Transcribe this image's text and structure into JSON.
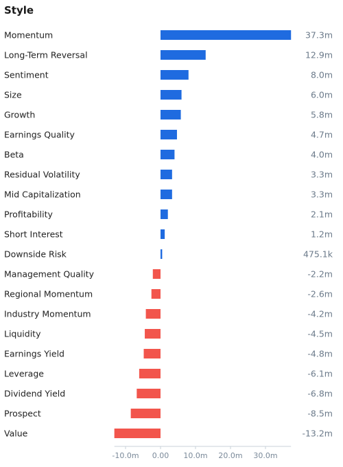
{
  "header": {
    "title": "Style"
  },
  "colors": {
    "positive": "#1f6be0",
    "negative": "#f2554c",
    "axis": "#c8d0d8"
  },
  "chart_data": {
    "type": "bar",
    "orientation": "horizontal",
    "title": "Style",
    "xlim": [
      -13.2,
      37.3
    ],
    "xticks": [
      -10,
      0,
      10,
      20,
      30
    ],
    "xtick_labels": [
      "-10.0m",
      "0.00",
      "10.0m",
      "20.0m",
      "30.0m"
    ],
    "grid": false,
    "categories": [
      "Momentum",
      "Long-Term Reversal",
      "Sentiment",
      "Size",
      "Growth",
      "Earnings Quality",
      "Beta",
      "Residual Volatility",
      "Mid Capitalization",
      "Profitability",
      "Short Interest",
      "Downside Risk",
      "Management Quality",
      "Regional Momentum",
      "Industry Momentum",
      "Liquidity",
      "Earnings Yield",
      "Leverage",
      "Dividend Yield",
      "Prospect",
      "Value"
    ],
    "values": [
      37.3,
      12.9,
      8.0,
      6.0,
      5.8,
      4.7,
      4.0,
      3.3,
      3.3,
      2.1,
      1.2,
      0.4751,
      -2.2,
      -2.6,
      -4.2,
      -4.5,
      -4.8,
      -6.1,
      -6.8,
      -8.5,
      -13.2
    ],
    "value_labels": [
      "37.3m",
      "12.9m",
      "8.0m",
      "6.0m",
      "5.8m",
      "4.7m",
      "4.0m",
      "3.3m",
      "3.3m",
      "2.1m",
      "1.2m",
      "475.1k",
      "-2.2m",
      "-2.6m",
      "-4.2m",
      "-4.5m",
      "-4.8m",
      "-6.1m",
      "-6.8m",
      "-8.5m",
      "-13.2m"
    ]
  }
}
